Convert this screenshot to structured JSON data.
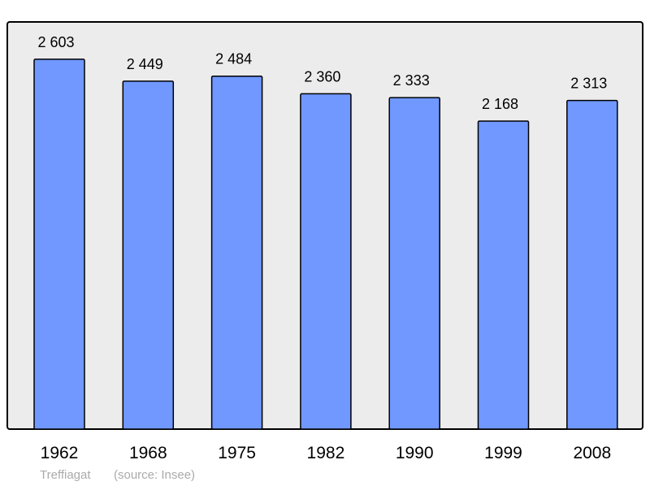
{
  "chart_data": {
    "type": "bar",
    "categories": [
      "1962",
      "1968",
      "1975",
      "1982",
      "1990",
      "1999",
      "2008"
    ],
    "values": [
      2603,
      2449,
      2484,
      2360,
      2333,
      2168,
      2313
    ],
    "value_labels": [
      "2 603",
      "2 449",
      "2 484",
      "2 360",
      "2 333",
      "2 168",
      "2 313"
    ],
    "ylim": [
      0,
      2860
    ],
    "grid": false,
    "colors": {
      "bar": "#7098ff",
      "plot_background": "#ececec",
      "outline": "#000000"
    }
  },
  "footer": {
    "place": "Treffiagat",
    "source": "(source: Insee)"
  }
}
